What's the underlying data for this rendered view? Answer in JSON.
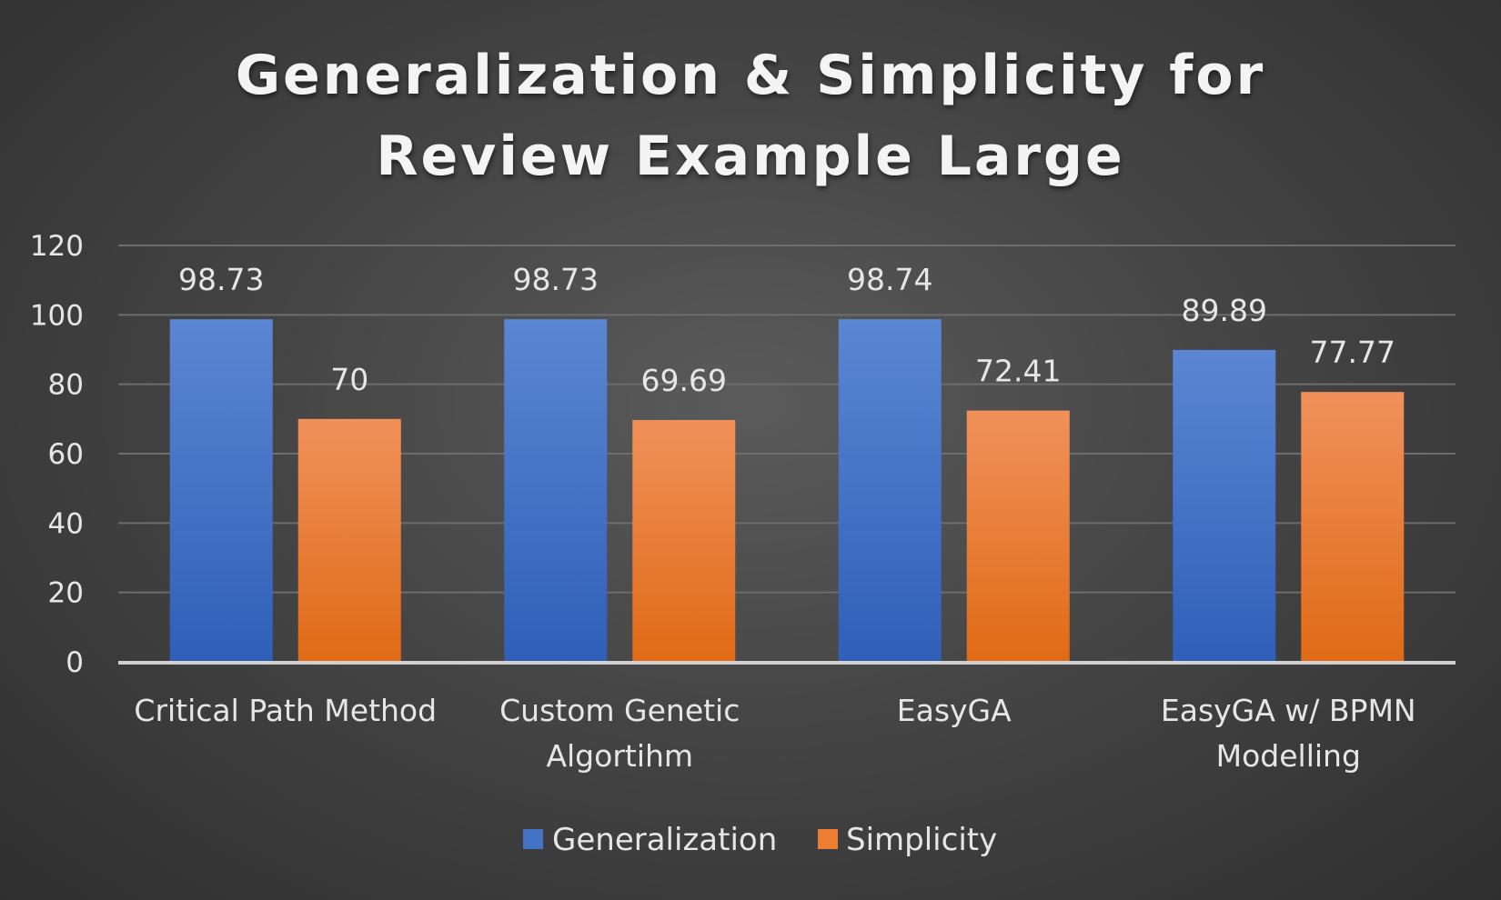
{
  "chart_data": {
    "type": "bar",
    "title": "Generalization & Simplicity for Review Example Large",
    "title_lines": [
      "Generalization & Simplicity for",
      "Review Example Large"
    ],
    "categories": [
      "Critical Path Method",
      "Custom Genetic Algortihm",
      "EasyGA",
      "EasyGA w/ BPMN Modelling"
    ],
    "category_lines": [
      [
        "Critical Path Method"
      ],
      [
        "Custom Genetic",
        "Algortihm"
      ],
      [
        "EasyGA"
      ],
      [
        "EasyGA w/ BPMN",
        "Modelling"
      ]
    ],
    "series": [
      {
        "name": "Generalization",
        "values": [
          98.73,
          98.73,
          98.74,
          89.89
        ],
        "color": "#4472c4"
      },
      {
        "name": "Simplicity",
        "values": [
          70,
          69.69,
          72.41,
          77.77
        ],
        "color": "#ed7d31"
      }
    ],
    "data_labels": [
      [
        "98.73",
        "98.73",
        "98.74",
        "89.89"
      ],
      [
        "70",
        "69.69",
        "72.41",
        "77.77"
      ]
    ],
    "yticks": [
      "0",
      "20",
      "40",
      "60",
      "80",
      "100",
      "120"
    ],
    "ylim": [
      0,
      120
    ],
    "grid": true,
    "legend_position": "bottom"
  }
}
